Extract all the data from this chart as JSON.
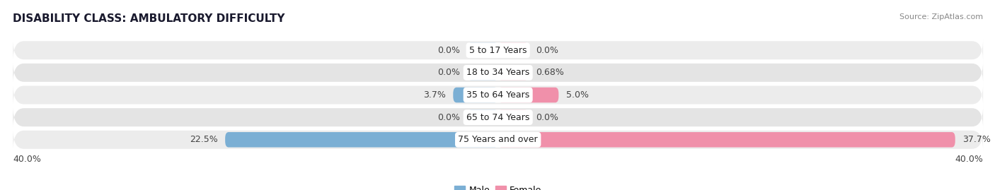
{
  "title": "DISABILITY CLASS: AMBULATORY DIFFICULTY",
  "source": "Source: ZipAtlas.com",
  "categories": [
    "5 to 17 Years",
    "18 to 34 Years",
    "35 to 64 Years",
    "65 to 74 Years",
    "75 Years and over"
  ],
  "male_values": [
    0.0,
    0.0,
    3.7,
    0.0,
    22.5
  ],
  "female_values": [
    0.0,
    0.68,
    5.0,
    0.0,
    37.7
  ],
  "male_labels": [
    "0.0%",
    "0.0%",
    "3.7%",
    "0.0%",
    "22.5%"
  ],
  "female_labels": [
    "0.0%",
    "0.68%",
    "5.0%",
    "0.0%",
    "37.7%"
  ],
  "male_color": "#7bafd4",
  "female_color": "#f090aa",
  "row_colors": [
    "#ececec",
    "#e4e4e4"
  ],
  "max_val": 40.0,
  "min_bar_display": 2.5,
  "title_fontsize": 11,
  "label_fontsize": 9,
  "category_fontsize": 9,
  "source_fontsize": 8,
  "axis_fontsize": 9,
  "background_color": "#ffffff",
  "title_color": "#1a1a2e",
  "label_color": "#444444",
  "source_color": "#888888"
}
